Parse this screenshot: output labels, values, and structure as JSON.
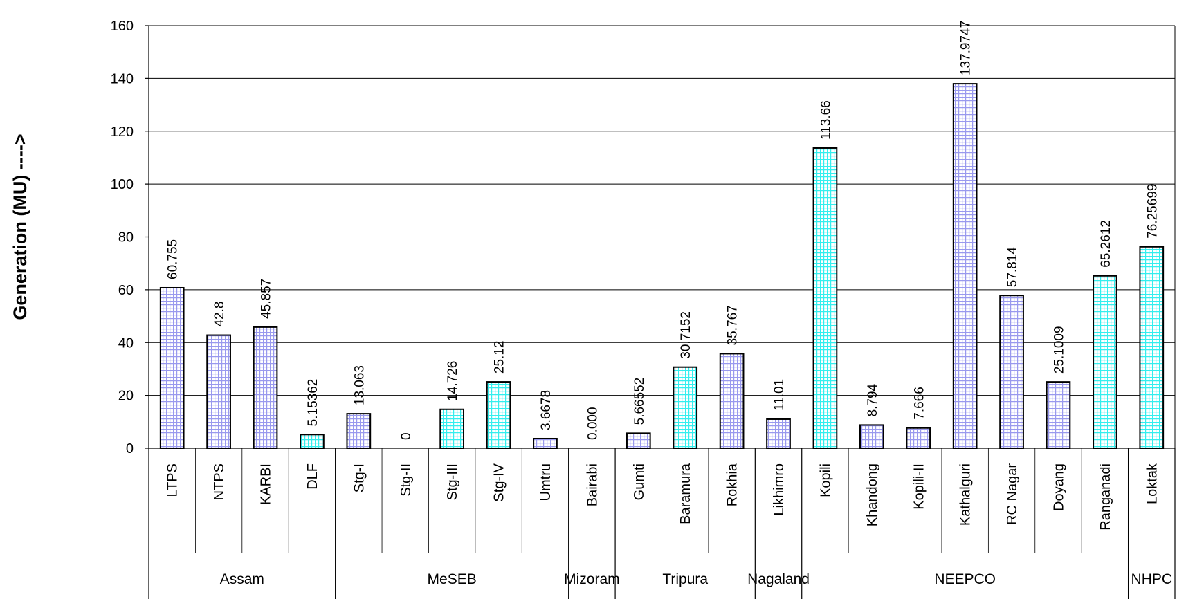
{
  "chart_data": {
    "type": "bar",
    "ylabel": "Generation (MU) ---->",
    "xlabel": "",
    "title": "",
    "ylim": [
      0,
      160
    ],
    "yticks": [
      "0",
      "20",
      "40",
      "60",
      "80",
      "100",
      "120",
      "140",
      "160"
    ],
    "grid": true,
    "pattern_colors": {
      "lavender": "#9999ee",
      "cyan": "#33eeee"
    },
    "categories": [
      "LTPS",
      "NTPS",
      "KARBI",
      "DLF",
      "Stg-I",
      "Stg-II",
      "Stg-III",
      "Stg-IV",
      "Umtru",
      "Bairabi",
      "Gumti",
      "Baramura",
      "Rokhia",
      "Likhimro",
      "Kopili",
      "Khandong",
      "Kopili-II",
      "Kathalguri",
      "RC Nagar",
      "Doyang",
      "Ranganadi",
      "Loktak"
    ],
    "values": [
      60.755,
      42.8,
      45.857,
      5.15362,
      13.063,
      0,
      14.726,
      25.12,
      3.6678,
      0.0,
      5.66552,
      30.7152,
      35.767,
      11.01,
      113.66,
      8.794,
      7.666,
      137.9747,
      57.814,
      25.1009,
      65.2612,
      76.25699
    ],
    "data_labels": [
      "60.755",
      "42.8",
      "45.857",
      "5.15362",
      "13.063",
      "0",
      "14.726",
      "25.12",
      "3.6678",
      "0.000",
      "5.66552",
      "30.7152",
      "35.767",
      "11.01",
      "113.66",
      "8.794",
      "7.666",
      "137.9747",
      "57.814",
      "25.1009",
      "65.2612",
      "76.25699"
    ],
    "bar_colors": [
      "lavender",
      "lavender",
      "lavender",
      "cyan",
      "lavender",
      "lavender",
      "cyan",
      "cyan",
      "lavender",
      "lavender",
      "lavender",
      "cyan",
      "lavender",
      "lavender",
      "cyan",
      "lavender",
      "lavender",
      "lavender",
      "lavender",
      "lavender",
      "cyan",
      "cyan"
    ],
    "groups": [
      {
        "name": "Assam",
        "start": 0,
        "count": 4
      },
      {
        "name": "MeSEB",
        "start": 4,
        "count": 5
      },
      {
        "name": "Mizoram",
        "start": 9,
        "count": 1
      },
      {
        "name": "Tripura",
        "start": 10,
        "count": 3
      },
      {
        "name": "Nagaland",
        "start": 13,
        "count": 1
      },
      {
        "name": "NEEPCO",
        "start": 14,
        "count": 7
      },
      {
        "name": "NHPC",
        "start": 21,
        "count": 1
      }
    ]
  }
}
